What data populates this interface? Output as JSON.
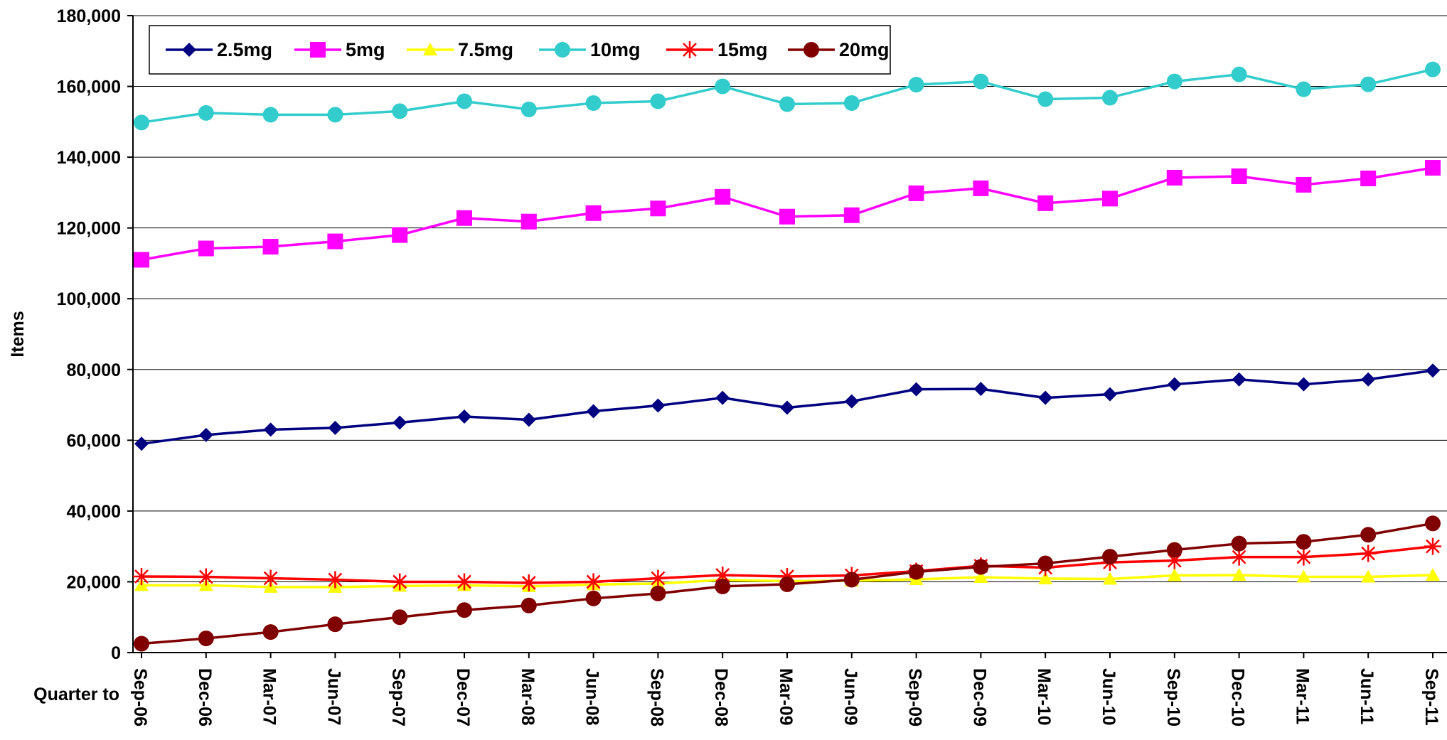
{
  "chart_data": {
    "type": "line",
    "title": "",
    "ylabel": "Items",
    "xlabel": "Quarter to",
    "ylim": [
      0,
      180000
    ],
    "yticks": [
      0,
      20000,
      40000,
      60000,
      80000,
      100000,
      120000,
      140000,
      160000,
      180000
    ],
    "ytick_labels": [
      "0",
      "20,000",
      "40,000",
      "60,000",
      "80,000",
      "100,000",
      "120,000",
      "140,000",
      "160,000",
      "180,000"
    ],
    "grid": true,
    "legend_position": "top-left",
    "categories": [
      "Sep-06",
      "Dec-06",
      "Mar-07",
      "Jun-07",
      "Sep-07",
      "Dec-07",
      "Mar-08",
      "Jun-08",
      "Sep-08",
      "Dec-08",
      "Mar-09",
      "Jun-09",
      "Sep-09",
      "Dec-09",
      "Mar-10",
      "Jun-10",
      "Sep-10",
      "Dec-10",
      "Mar-11",
      "Jun-11",
      "Sep-11"
    ],
    "series": [
      {
        "name": "2.5mg",
        "color": "#000080",
        "marker": "diamond",
        "values": [
          59000,
          61500,
          63000,
          63500,
          65000,
          66700,
          65800,
          68200,
          69800,
          72000,
          69200,
          71000,
          74400,
          74500,
          72000,
          73000,
          75800,
          77200,
          75800,
          77200,
          79700
        ]
      },
      {
        "name": "5mg",
        "color": "#FF00FF",
        "marker": "square",
        "values": [
          111000,
          114200,
          114700,
          116200,
          118000,
          122800,
          121800,
          124200,
          125500,
          128800,
          123200,
          123600,
          129800,
          131200,
          127000,
          128300,
          134200,
          134600,
          132200,
          134000,
          137000
        ]
      },
      {
        "name": "7.5mg",
        "color": "#FFFF00",
        "marker": "triangle",
        "values": [
          19000,
          19000,
          18500,
          18500,
          18800,
          19000,
          18700,
          19200,
          19500,
          20500,
          20200,
          20300,
          20700,
          21300,
          20900,
          20800,
          21800,
          21900,
          21400,
          21400,
          21900
        ]
      },
      {
        "name": "10mg",
        "color": "#33CCCC",
        "marker": "circle",
        "values": [
          149800,
          152500,
          152000,
          152000,
          153000,
          155800,
          153500,
          155300,
          155800,
          160000,
          155000,
          155300,
          160500,
          161400,
          156400,
          156800,
          161400,
          163400,
          159200,
          160600,
          164800
        ]
      },
      {
        "name": "15mg",
        "color": "#FF0000",
        "marker": "star",
        "values": [
          21500,
          21400,
          21000,
          20600,
          20000,
          20000,
          19700,
          20000,
          21000,
          21900,
          21500,
          21800,
          23000,
          24500,
          24000,
          25500,
          26000,
          27000,
          27000,
          28000,
          30000
        ]
      },
      {
        "name": "20mg",
        "color": "#800000",
        "marker": "circle",
        "values": [
          2500,
          4000,
          5800,
          8000,
          10000,
          12000,
          13300,
          15300,
          16700,
          18700,
          19300,
          20600,
          22800,
          24200,
          25200,
          27100,
          29000,
          30800,
          31300,
          33300,
          36500
        ]
      }
    ]
  }
}
